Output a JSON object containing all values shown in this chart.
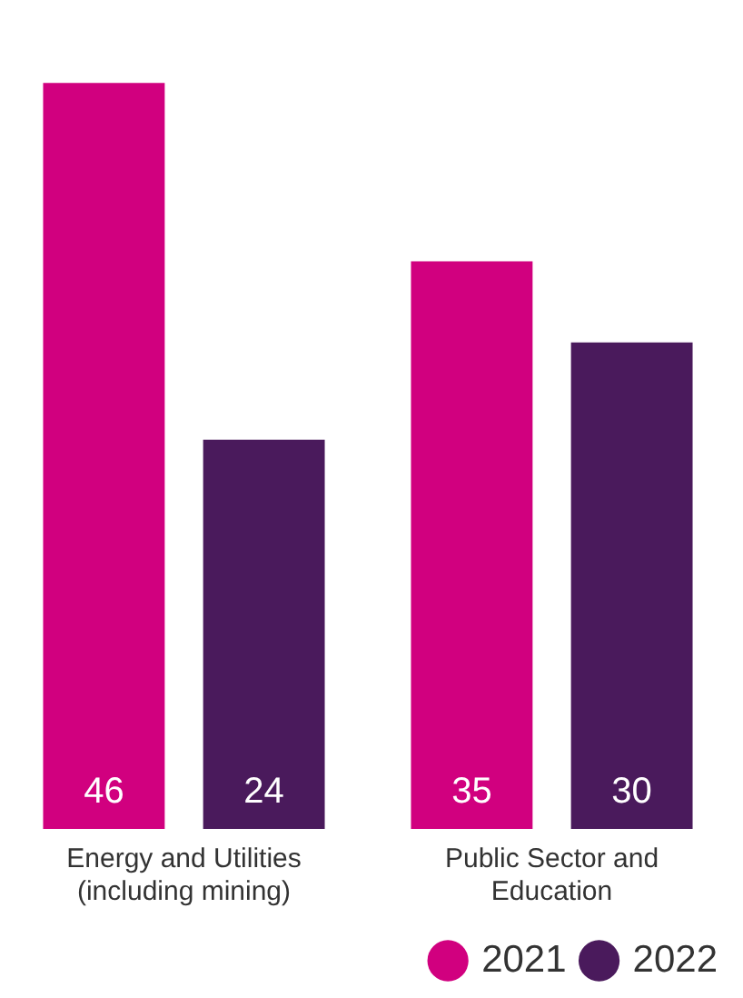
{
  "chart_data": {
    "type": "bar",
    "categories": [
      "Energy and Utilities (including mining)",
      "Public Sector and Education"
    ],
    "series": [
      {
        "name": "2021",
        "color": "#d1007f",
        "values": [
          46,
          35
        ]
      },
      {
        "name": "2022",
        "color": "#4a1a5c",
        "values": [
          24,
          30
        ]
      }
    ],
    "data_labels": true,
    "legend": "bottom right",
    "grid": false
  }
}
